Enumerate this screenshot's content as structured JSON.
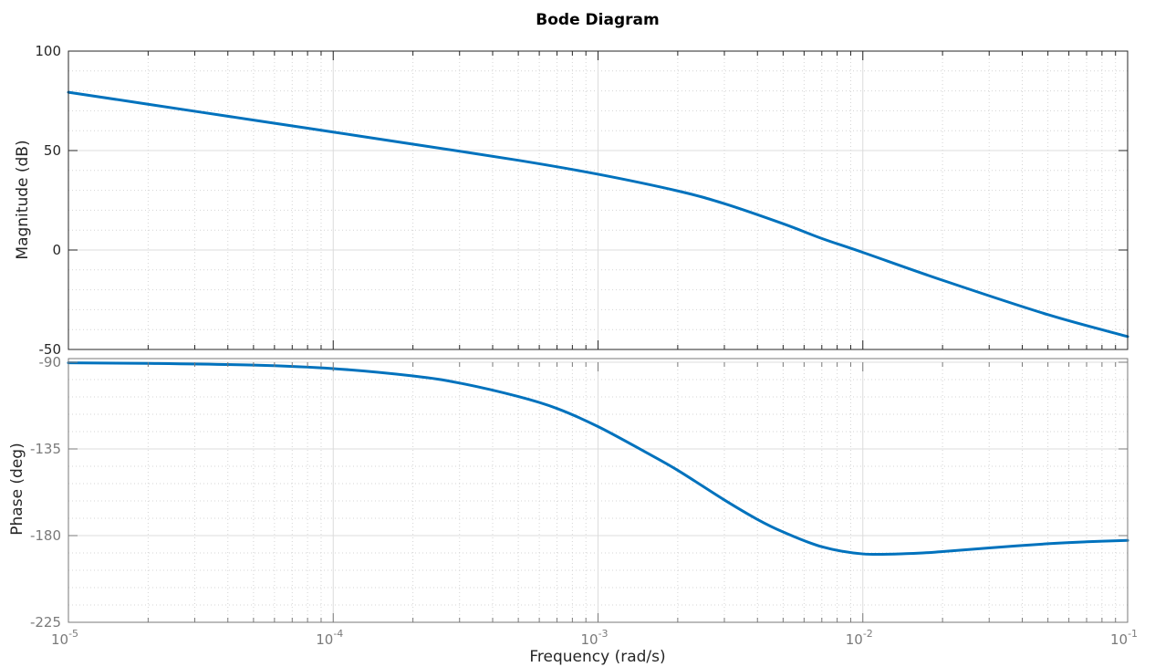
{
  "chart_data": {
    "type": "line",
    "title": "Bode Diagram",
    "xlabel": "Frequency  (rad/s)",
    "x_scale": "log",
    "xlim": [
      1e-05,
      0.1
    ],
    "x_ticks": [
      {
        "base": "10",
        "exp": "-5"
      },
      {
        "base": "10",
        "exp": "-4"
      },
      {
        "base": "10",
        "exp": "-3"
      },
      {
        "base": "10",
        "exp": "-2"
      },
      {
        "base": "10",
        "exp": "-1"
      }
    ],
    "grid": true,
    "minor_grid": true,
    "line_color": "#0072bd",
    "panels": [
      {
        "name": "magnitude",
        "ylabel": "Magnitude (dB)",
        "ylim": [
          -50,
          100
        ],
        "y_ticks": [
          "100",
          "50",
          "0",
          "-50"
        ],
        "y_tick_values": [
          100,
          50,
          0,
          -50
        ],
        "x": [
          1e-05,
          2e-05,
          5e-05,
          0.0001,
          0.0002,
          0.0005,
          0.001,
          0.002,
          0.003,
          0.005,
          0.007,
          0.01,
          0.02,
          0.05,
          0.1
        ],
        "y": [
          79.3,
          73.3,
          65.3,
          59.3,
          53.2,
          45.1,
          38.1,
          29.7,
          23.3,
          13.2,
          5.8,
          -1.2,
          -15.2,
          -32.5,
          -43.5
        ]
      },
      {
        "name": "phase",
        "ylabel": "Phase (deg)",
        "ylim": [
          -225,
          -90
        ],
        "y_ticks": [
          "-90",
          "-135",
          "-180",
          "-225"
        ],
        "y_tick_values": [
          -90,
          -135,
          -180,
          -225
        ],
        "x": [
          1e-05,
          2e-05,
          5e-05,
          0.0001,
          0.0002,
          0.0003,
          0.0005,
          0.0007,
          0.001,
          0.0015,
          0.002,
          0.003,
          0.004,
          0.005,
          0.007,
          0.01,
          0.015,
          0.02,
          0.03,
          0.05,
          0.07,
          0.1
        ],
        "y": [
          -90.3,
          -90.6,
          -91.5,
          -93.3,
          -97.1,
          -100.8,
          -107.8,
          -114.0,
          -123.4,
          -136.4,
          -146.1,
          -161.5,
          -171.6,
          -178.1,
          -185.8,
          -189.5,
          -189.3,
          -188.3,
          -186.4,
          -184.2,
          -183.2,
          -182.5
        ]
      }
    ]
  }
}
